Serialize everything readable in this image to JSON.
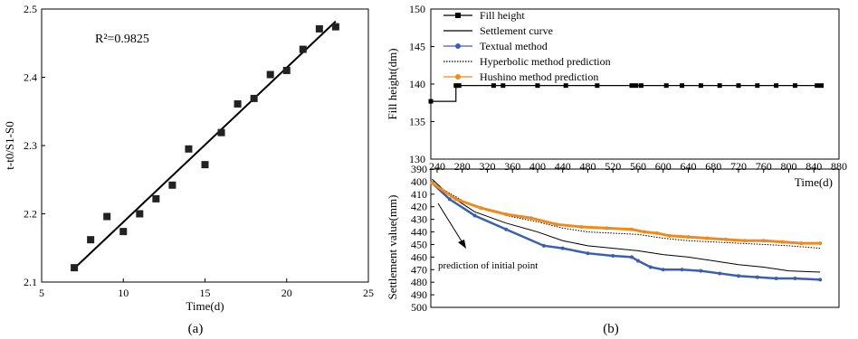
{
  "panels": {
    "a": {
      "caption": "(a)"
    },
    "b": {
      "caption": "(b)"
    }
  },
  "chart_data": [
    {
      "type": "scatter",
      "panel": "a",
      "xlabel": "Time(d)",
      "ylabel": "t-t0/S1-S0",
      "xlim": [
        5,
        25
      ],
      "ylim": [
        2.1,
        2.5
      ],
      "xticks": [
        5,
        10,
        15,
        20,
        25
      ],
      "yticks": [
        2.1,
        2.2,
        2.3,
        2.4,
        2.5
      ],
      "annotation": "R²=0.9825",
      "points": [
        [
          7,
          2.121
        ],
        [
          8,
          2.162
        ],
        [
          9,
          2.196
        ],
        [
          10,
          2.174
        ],
        [
          11,
          2.2
        ],
        [
          12,
          2.222
        ],
        [
          13,
          2.242
        ],
        [
          14,
          2.295
        ],
        [
          15,
          2.272
        ],
        [
          16,
          2.319
        ],
        [
          17,
          2.361
        ],
        [
          18,
          2.369
        ],
        [
          19,
          2.404
        ],
        [
          20,
          2.41
        ],
        [
          21,
          2.441
        ],
        [
          22,
          2.471
        ],
        [
          23,
          2.474
        ]
      ],
      "fit_line": [
        [
          7,
          2.12
        ],
        [
          23,
          2.482
        ]
      ]
    },
    {
      "type": "line",
      "panel": "b-top",
      "ylabel": "Fill height(dm)",
      "xlim": [
        230,
        880
      ],
      "ylim": [
        130,
        150
      ],
      "yticks": [
        130,
        135,
        140,
        145,
        150
      ],
      "legend_position": "top-left",
      "series": [
        {
          "name": "Fill height",
          "color": "#000000",
          "x": [
            230,
            270,
            270,
            275,
            330,
            345,
            400,
            445,
            495,
            550,
            557,
            565,
            605,
            630,
            660,
            690,
            720,
            750,
            780,
            810,
            845,
            852
          ],
          "values": [
            137.7,
            137.7,
            139.8,
            139.8,
            139.8,
            139.8,
            139.8,
            139.8,
            139.8,
            139.8,
            139.8,
            139.8,
            139.8,
            139.8,
            139.8,
            139.8,
            139.8,
            139.8,
            139.8,
            139.8,
            139.8,
            139.8
          ]
        }
      ]
    },
    {
      "type": "line",
      "panel": "b-bottom",
      "xlabel": "Time(d)",
      "ylabel": "Settlement value(mm)",
      "xlim": [
        230,
        880
      ],
      "ylim": [
        390,
        500
      ],
      "xticks": [
        240,
        280,
        320,
        360,
        400,
        440,
        480,
        520,
        560,
        600,
        640,
        680,
        720,
        760,
        800,
        840,
        880
      ],
      "yticks": [
        390,
        400,
        410,
        420,
        430,
        440,
        450,
        460,
        470,
        480,
        490,
        500
      ],
      "annotation": "prediction of initial point",
      "series": [
        {
          "name": "Settlement curve",
          "color": "#000000",
          "x": [
            232,
            260,
            300,
            350,
            400,
            440,
            480,
            520,
            560,
            600,
            640,
            680,
            720,
            760,
            800,
            850
          ],
          "values": [
            398,
            411,
            424,
            433,
            440,
            447,
            451,
            453,
            455,
            458,
            460,
            463,
            466,
            468,
            471,
            472
          ]
        },
        {
          "name": "Textual method",
          "color": "#3a5fb0",
          "x": [
            232,
            260,
            300,
            350,
            410,
            440,
            480,
            520,
            550,
            560,
            580,
            600,
            630,
            660,
            690,
            720,
            750,
            780,
            810,
            850
          ],
          "values": [
            401,
            414,
            427,
            438,
            451,
            453,
            457,
            459,
            460,
            463,
            468,
            470,
            470,
            471,
            473,
            475,
            476,
            477,
            477,
            478
          ]
        },
        {
          "name": "Hyperbolic method prediction",
          "color": "#000000",
          "x": [
            232,
            280,
            320,
            360,
            400,
            440,
            480,
            520,
            560,
            600,
            640,
            680,
            720,
            760,
            800,
            850
          ],
          "values": [
            401,
            415,
            423,
            428,
            432,
            437,
            440,
            441,
            442,
            445,
            447,
            448,
            449,
            450,
            451,
            453
          ]
        },
        {
          "name": "Hushino method prediction",
          "color": "#f08a1c",
          "x": [
            232,
            270,
            310,
            350,
            390,
            430,
            470,
            510,
            550,
            570,
            590,
            610,
            640,
            670,
            700,
            730,
            760,
            790,
            820,
            850
          ],
          "values": [
            401,
            414,
            421,
            426,
            429,
            434,
            436,
            437,
            438,
            440,
            441,
            443,
            444,
            445,
            446,
            447,
            447,
            448,
            449,
            449
          ]
        }
      ]
    }
  ]
}
